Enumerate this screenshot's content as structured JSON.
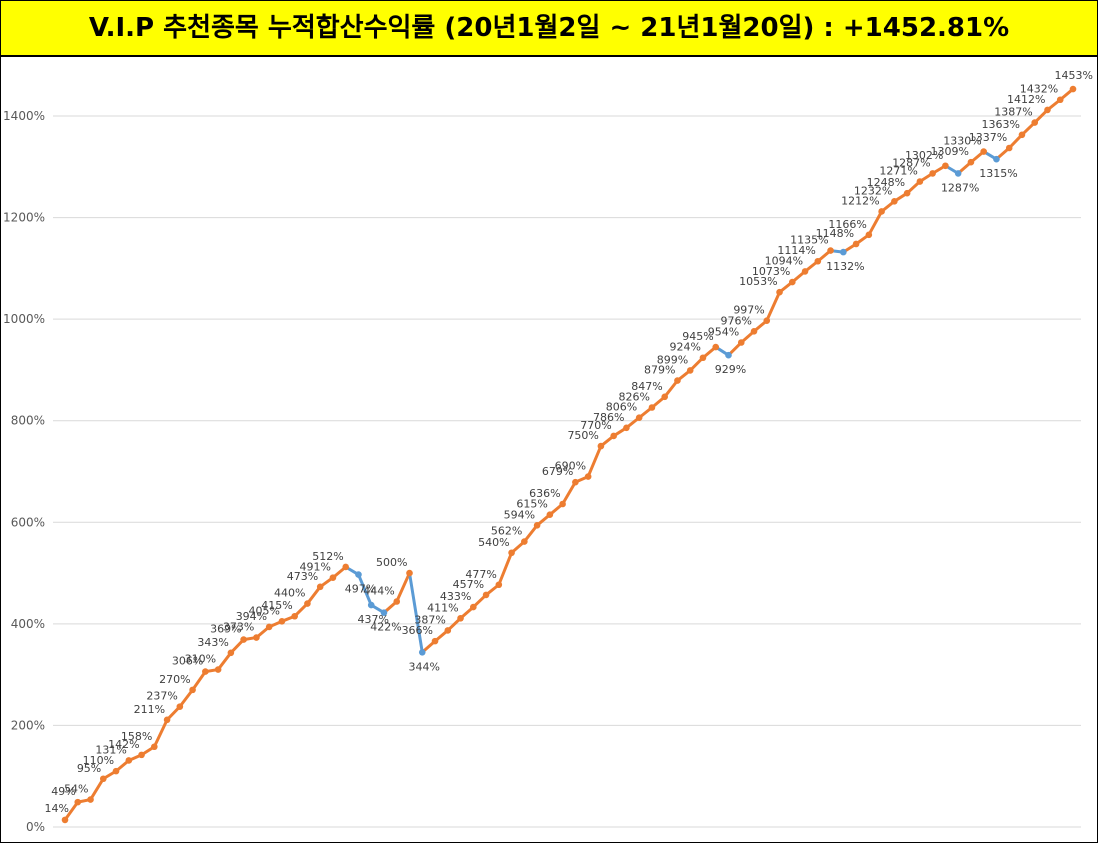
{
  "title": "V.I.P 추천종목 누적합산수익률 (20년1월2일 ~ 21년1월20일) : +1452.81%",
  "chart_data": {
    "type": "line",
    "title": "V.I.P 추천종목 누적합산수익률 (20년1월2일 ~ 21년1월20일) : +1452.81%",
    "xlabel": "",
    "ylabel": "",
    "ylim": [
      0,
      1450
    ],
    "yticks": [
      0,
      200,
      400,
      600,
      800,
      1000,
      1200,
      1400
    ],
    "ytick_labels": [
      "0%",
      "200%",
      "400%",
      "600%",
      "800%",
      "1000%",
      "1200%",
      "1400%"
    ],
    "grid": true,
    "legend": "none",
    "colors": {
      "up": "#ed7d31",
      "down": "#5b9bd5",
      "grid": "#d9d9d9",
      "title_bg": "#ffff00"
    },
    "values": [
      14,
      49,
      54,
      95,
      110,
      131,
      142,
      158,
      211,
      237,
      270,
      306,
      310,
      343,
      369,
      373,
      394,
      405,
      415,
      440,
      473,
      491,
      512,
      497,
      437,
      422,
      444,
      500,
      344,
      366,
      387,
      411,
      433,
      457,
      477,
      540,
      562,
      594,
      615,
      636,
      679,
      690,
      750,
      770,
      786,
      806,
      826,
      847,
      879,
      899,
      924,
      945,
      929,
      954,
      976,
      997,
      1053,
      1073,
      1094,
      1114,
      1135,
      1132,
      1148,
      1166,
      1212,
      1232,
      1248,
      1271,
      1287,
      1302,
      1287,
      1309,
      1330,
      1315,
      1337,
      1363,
      1387,
      1412,
      1432,
      1453
    ],
    "labels": [
      "14%",
      "49%",
      "54%",
      "95%",
      "110%",
      "131%",
      "142%",
      "158%",
      "211%",
      "237%",
      "270%",
      "306%",
      "310%",
      "343%",
      "369%",
      "373%",
      "394%",
      "405%",
      "415%",
      "440%",
      "473%",
      "491%",
      "512%",
      "497%",
      "437%",
      "422%",
      "444%",
      "500%",
      "344%",
      "366%",
      "387%",
      "411%",
      "433%",
      "457%",
      "477%",
      "540%",
      "562%",
      "594%",
      "615%",
      "636%",
      "679%",
      "690%",
      "750%",
      "770%",
      "786%",
      "806%",
      "826%",
      "847%",
      "879%",
      "899%",
      "924%",
      "945%",
      "929%",
      "954%",
      "976%",
      "997%",
      "1053%",
      "1073%",
      "1094%",
      "1114%",
      "1135%",
      "1132%",
      "1148%",
      "1166%",
      "1212%",
      "1232%",
      "1248%",
      "1271%",
      "1287%",
      "1302%",
      "1287%",
      "1309%",
      "1330%",
      "1315%",
      "1337%",
      "1363%",
      "1387%",
      "1412%",
      "1432%",
      "1453%"
    ]
  }
}
